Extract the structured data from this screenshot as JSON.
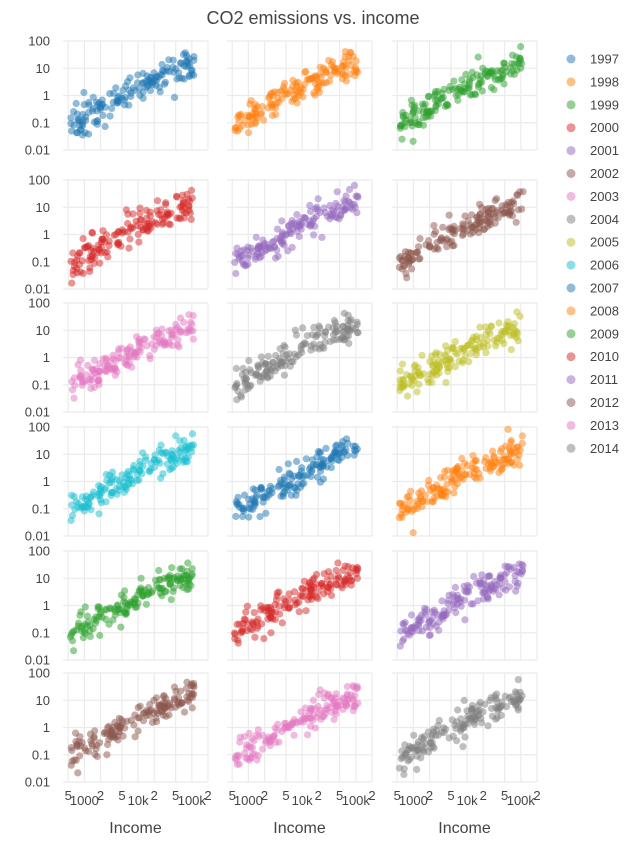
{
  "chart_data": {
    "type": "scatter",
    "title": "CO2 emissions vs. income",
    "xlabel": "Income",
    "ylabel": "",
    "x_scale": "log",
    "y_scale": "log",
    "xlim": [
      400,
      200000
    ],
    "ylim": [
      0.01,
      100
    ],
    "y_ticks": [
      {
        "value": 100,
        "label": "100"
      },
      {
        "value": 10,
        "label": "10"
      },
      {
        "value": 1,
        "label": "1"
      },
      {
        "value": 0.1,
        "label": "0.1"
      },
      {
        "value": 0.01,
        "label": "0.01"
      }
    ],
    "x_ticks": [
      {
        "value": 500,
        "label": "5"
      },
      {
        "value": 1000,
        "label": "1000"
      },
      {
        "value": 2000,
        "label": "2"
      },
      {
        "value": 5000,
        "label": "5"
      },
      {
        "value": 10000,
        "label": "10k"
      },
      {
        "value": 20000,
        "label": "2"
      },
      {
        "value": 50000,
        "label": "5"
      },
      {
        "value": 100000,
        "label": "100k"
      },
      {
        "value": 200000,
        "label": "2"
      }
    ],
    "legend_position": "right",
    "grid": true,
    "facet_layout": {
      "rows": 6,
      "cols": 3
    },
    "series": [
      {
        "name": "1997",
        "color": "#1f77b4"
      },
      {
        "name": "1998",
        "color": "#ff7f0e"
      },
      {
        "name": "1999",
        "color": "#2ca02c"
      },
      {
        "name": "2000",
        "color": "#d62728"
      },
      {
        "name": "2001",
        "color": "#9467bd"
      },
      {
        "name": "2002",
        "color": "#8c564b"
      },
      {
        "name": "2003",
        "color": "#e377c2"
      },
      {
        "name": "2004",
        "color": "#7f7f7f"
      },
      {
        "name": "2005",
        "color": "#bcbd22"
      },
      {
        "name": "2006",
        "color": "#17becf"
      },
      {
        "name": "2007",
        "color": "#1f77b4"
      },
      {
        "name": "2008",
        "color": "#ff7f0e"
      },
      {
        "name": "2009",
        "color": "#2ca02c"
      },
      {
        "name": "2010",
        "color": "#d62728"
      },
      {
        "name": "2011",
        "color": "#9467bd"
      },
      {
        "name": "2012",
        "color": "#8c564b"
      },
      {
        "name": "2013",
        "color": "#e377c2"
      },
      {
        "name": "2014",
        "color": "#7f7f7f"
      }
    ],
    "typical_points": [
      {
        "x": 600,
        "y": 0.06
      },
      {
        "x": 800,
        "y": 0.1
      },
      {
        "x": 1000,
        "y": 0.15
      },
      {
        "x": 1500,
        "y": 0.3
      },
      {
        "x": 2000,
        "y": 0.5
      },
      {
        "x": 3000,
        "y": 0.9
      },
      {
        "x": 5000,
        "y": 1.5
      },
      {
        "x": 8000,
        "y": 3
      },
      {
        "x": 10000,
        "y": 4
      },
      {
        "x": 15000,
        "y": 6
      },
      {
        "x": 20000,
        "y": 8
      },
      {
        "x": 30000,
        "y": 10
      },
      {
        "x": 50000,
        "y": 12
      },
      {
        "x": 80000,
        "y": 20
      },
      {
        "x": 100000,
        "y": 30
      }
    ]
  }
}
